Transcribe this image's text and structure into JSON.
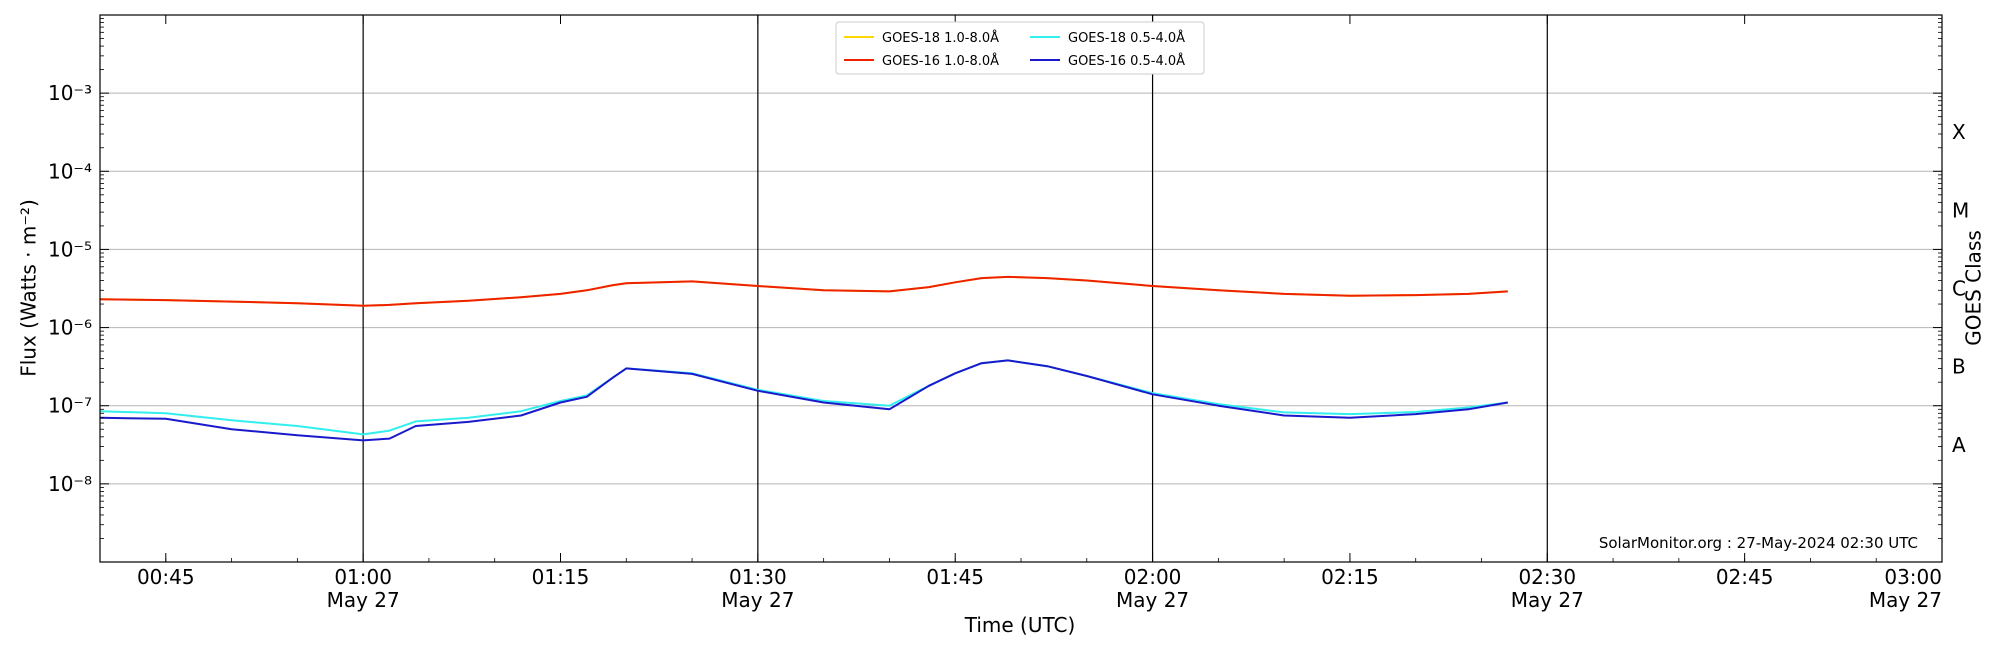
{
  "chart_data": {
    "type": "line",
    "title": "",
    "xlabel": "Time (UTC)",
    "ylabel": "Flux (Watts · m⁻²)",
    "y2label": "GOES Class",
    "yscale": "log",
    "ylim": [
      1e-09,
      0.01
    ],
    "xlim": [
      "00:40",
      "03:00"
    ],
    "grid": "horizontal",
    "legend": "top-center",
    "y_ticks": [
      {
        "value": 1e-08,
        "label": "10⁻⁸"
      },
      {
        "value": 1e-07,
        "label": "10⁻⁷"
      },
      {
        "value": 1e-06,
        "label": "10⁻⁶"
      },
      {
        "value": 1e-05,
        "label": "10⁻⁵"
      },
      {
        "value": 0.0001,
        "label": "10⁻⁴"
      },
      {
        "value": 0.001,
        "label": "10⁻³"
      }
    ],
    "x_ticks": [
      {
        "time": "00:45",
        "label": "00:45",
        "date": ""
      },
      {
        "time": "01:00",
        "label": "01:00",
        "date": "May 27"
      },
      {
        "time": "01:15",
        "label": "01:15",
        "date": ""
      },
      {
        "time": "01:30",
        "label": "01:30",
        "date": "May 27"
      },
      {
        "time": "01:45",
        "label": "01:45",
        "date": ""
      },
      {
        "time": "02:00",
        "label": "02:00",
        "date": "May 27"
      },
      {
        "time": "02:15",
        "label": "02:15",
        "date": ""
      },
      {
        "time": "02:30",
        "label": "02:30",
        "date": "May 27"
      },
      {
        "time": "02:45",
        "label": "02:45",
        "date": ""
      },
      {
        "time": "03:00",
        "label": "03:00",
        "date": "May 27"
      }
    ],
    "vlines": [
      "01:00",
      "01:30",
      "02:00",
      "02:30"
    ],
    "class_labels": [
      {
        "label": "A",
        "value": 3.16e-08
      },
      {
        "label": "B",
        "value": 3.16e-07
      },
      {
        "label": "C",
        "value": 3.16e-06
      },
      {
        "label": "M",
        "value": 3.16e-05
      },
      {
        "label": "X",
        "value": 0.000316
      }
    ],
    "x": [
      "00:40",
      "00:45",
      "00:50",
      "00:55",
      "01:00",
      "01:02",
      "01:04",
      "01:08",
      "01:12",
      "01:15",
      "01:17",
      "01:19",
      "01:20",
      "01:25",
      "01:30",
      "01:35",
      "01:40",
      "01:43",
      "01:45",
      "01:47",
      "01:49",
      "01:52",
      "01:55",
      "02:00",
      "02:05",
      "02:10",
      "02:15",
      "02:20",
      "02:24",
      "02:27"
    ],
    "series": [
      {
        "name": "GOES-18 1.0-8.0Å",
        "color": "#ffd700",
        "values": [
          2.3e-06,
          2.25e-06,
          2.15e-06,
          2.05e-06,
          1.9e-06,
          1.95e-06,
          2.05e-06,
          2.2e-06,
          2.45e-06,
          2.7e-06,
          3e-06,
          3.5e-06,
          3.7e-06,
          3.9e-06,
          3.4e-06,
          3e-06,
          2.9e-06,
          3.3e-06,
          3.8e-06,
          4.3e-06,
          4.45e-06,
          4.3e-06,
          4e-06,
          3.4e-06,
          3e-06,
          2.7e-06,
          2.55e-06,
          2.6e-06,
          2.7e-06,
          2.9e-06
        ]
      },
      {
        "name": "GOES-16 1.0-8.0Å",
        "color": "#ee2200",
        "values": [
          2.3e-06,
          2.25e-06,
          2.15e-06,
          2.05e-06,
          1.9e-06,
          1.95e-06,
          2.05e-06,
          2.2e-06,
          2.45e-06,
          2.7e-06,
          3e-06,
          3.5e-06,
          3.7e-06,
          3.9e-06,
          3.4e-06,
          3e-06,
          2.9e-06,
          3.3e-06,
          3.8e-06,
          4.3e-06,
          4.45e-06,
          4.3e-06,
          4e-06,
          3.4e-06,
          3e-06,
          2.7e-06,
          2.55e-06,
          2.6e-06,
          2.7e-06,
          2.9e-06
        ]
      },
      {
        "name": "GOES-18 0.5-4.0Å",
        "color": "#33eeee",
        "values": [
          8.5e-08,
          8e-08,
          6.5e-08,
          5.5e-08,
          4.3e-08,
          4.8e-08,
          6.3e-08,
          7e-08,
          8.5e-08,
          1.15e-07,
          1.35e-07,
          2.3e-07,
          3e-07,
          2.6e-07,
          1.6e-07,
          1.15e-07,
          1e-07,
          1.8e-07,
          2.6e-07,
          3.5e-07,
          3.8e-07,
          3.2e-07,
          2.4e-07,
          1.45e-07,
          1.05e-07,
          8.2e-08,
          7.8e-08,
          8.3e-08,
          9.5e-08,
          1.1e-07
        ]
      },
      {
        "name": "GOES-16 0.5-4.0Å",
        "color": "#1a1acc",
        "values": [
          7e-08,
          6.8e-08,
          5e-08,
          4.2e-08,
          3.6e-08,
          3.8e-08,
          5.5e-08,
          6.2e-08,
          7.5e-08,
          1.1e-07,
          1.3e-07,
          2.3e-07,
          3e-07,
          2.55e-07,
          1.55e-07,
          1.1e-07,
          9e-08,
          1.8e-07,
          2.6e-07,
          3.5e-07,
          3.8e-07,
          3.2e-07,
          2.4e-07,
          1.4e-07,
          1e-07,
          7.5e-08,
          7e-08,
          7.8e-08,
          9e-08,
          1.1e-07
        ]
      }
    ]
  },
  "footer": {
    "credit": "SolarMonitor.org : 27-May-2024 02:30 UTC"
  }
}
